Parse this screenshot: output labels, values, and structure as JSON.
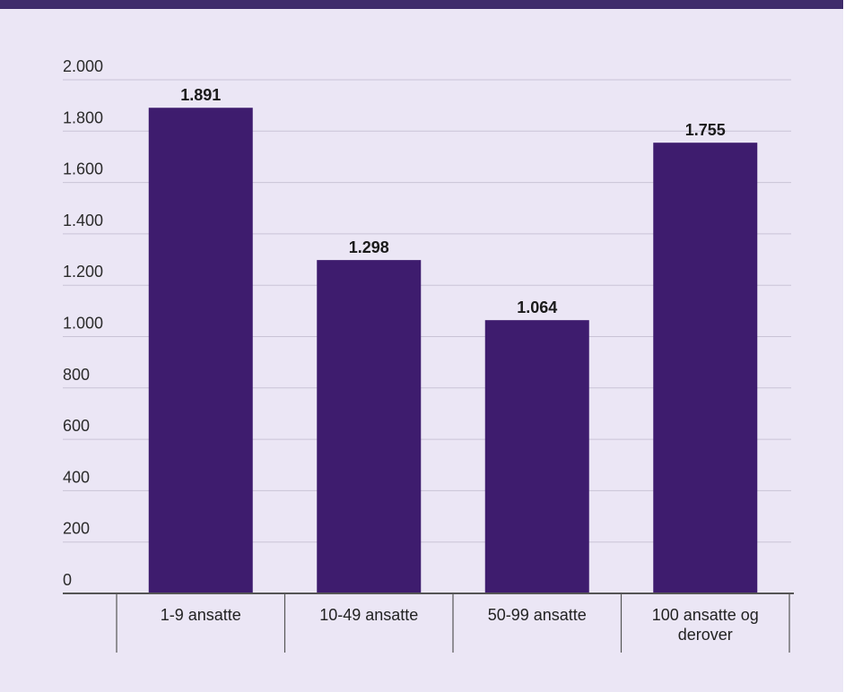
{
  "chart_data": {
    "type": "bar",
    "title": "",
    "xlabel": "",
    "ylabel": "",
    "categories": [
      [
        "1-9 ansatte"
      ],
      [
        "10-49 ansatte"
      ],
      [
        "50-99 ansatte"
      ],
      [
        "100 ansatte og",
        "derover"
      ]
    ],
    "values": [
      1891,
      1298,
      1064,
      1755
    ],
    "value_labels": [
      "1.891",
      "1.298",
      "1.064",
      "1.755"
    ],
    "ylim": [
      0,
      2000
    ],
    "yticks": [
      0,
      200,
      400,
      600,
      800,
      1000,
      1200,
      1400,
      1600,
      1800,
      2000
    ],
    "ytick_labels": [
      "0",
      "200",
      "400",
      "600",
      "800",
      "1.000",
      "1.200",
      "1.400",
      "1.600",
      "1.800",
      "2.000"
    ],
    "grid": true,
    "legend": "none",
    "colors": {
      "bar": "#3e1c6e",
      "grid": "#c9c3d6",
      "axis": "#555555",
      "background": "#ebe6f5",
      "header_strip": "#3f2c6b"
    }
  }
}
